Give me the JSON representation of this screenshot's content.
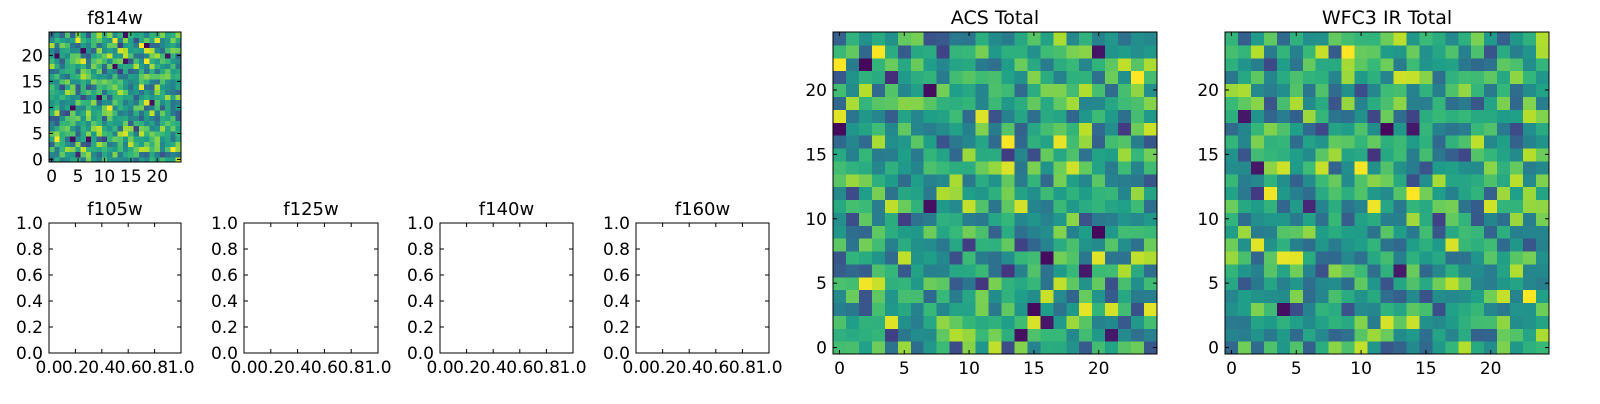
{
  "chart_data": [
    {
      "id": "f814w",
      "type": "heatmap",
      "title": "f814w",
      "xlabel": "",
      "ylabel": "",
      "xlim": [
        -0.5,
        24.5
      ],
      "ylim": [
        -0.5,
        24.5
      ],
      "xticks": [
        0,
        5,
        10,
        15,
        20
      ],
      "xticklabels": [
        "0",
        "5",
        "10",
        "15",
        "20"
      ],
      "yticks": [
        0,
        5,
        10,
        15,
        20
      ],
      "yticklabels": [
        "0",
        "5",
        "10",
        "15",
        "20"
      ],
      "colormap": "viridis",
      "value_range": [
        0,
        1
      ],
      "grid_size": 25,
      "values": "25x25 noise field, values 0-1, rendered with viridis colormap (approximate)",
      "seed": 11
    },
    {
      "id": "f105w",
      "type": "empty",
      "title": "f105w",
      "xlim": [
        0,
        1
      ],
      "ylim": [
        0,
        1
      ],
      "xticklabels": [
        "0.0",
        "0.2",
        "0.4",
        "0.6",
        "0.8",
        "1.0"
      ],
      "yticklabels": [
        "0.0",
        "0.2",
        "0.4",
        "0.6",
        "0.8",
        "1.0"
      ]
    },
    {
      "id": "f125w",
      "type": "empty",
      "title": "f125w",
      "xlim": [
        0,
        1
      ],
      "ylim": [
        0,
        1
      ],
      "xticklabels": [
        "0.0",
        "0.2",
        "0.4",
        "0.6",
        "0.8",
        "1.0"
      ],
      "yticklabels": [
        "0.0",
        "0.2",
        "0.4",
        "0.6",
        "0.8",
        "1.0"
      ]
    },
    {
      "id": "f140w",
      "type": "empty",
      "title": "f140w",
      "xlim": [
        0,
        1
      ],
      "ylim": [
        0,
        1
      ],
      "xticklabels": [
        "0.0",
        "0.2",
        "0.4",
        "0.6",
        "0.8",
        "1.0"
      ],
      "yticklabels": [
        "0.0",
        "0.2",
        "0.4",
        "0.6",
        "0.8",
        "1.0"
      ]
    },
    {
      "id": "f160w",
      "type": "empty",
      "title": "f160w",
      "xlim": [
        0,
        1
      ],
      "ylim": [
        0,
        1
      ],
      "xticklabels": [
        "0.0",
        "0.2",
        "0.4",
        "0.6",
        "0.8",
        "1.0"
      ],
      "yticklabels": [
        "0.0",
        "0.2",
        "0.4",
        "0.6",
        "0.8",
        "1.0"
      ]
    },
    {
      "id": "acs_total",
      "type": "heatmap",
      "title": "ACS Total",
      "xlim": [
        -0.5,
        24.5
      ],
      "ylim": [
        -0.5,
        24.5
      ],
      "xticks": [
        0,
        5,
        10,
        15,
        20
      ],
      "xticklabels": [
        "0",
        "5",
        "10",
        "15",
        "20"
      ],
      "yticks": [
        0,
        5,
        10,
        15,
        20
      ],
      "yticklabels": [
        "0",
        "5",
        "10",
        "15",
        "20"
      ],
      "colormap": "viridis",
      "value_range": [
        0,
        1
      ],
      "grid_size": 25,
      "values": "25x25 noise field, values 0-1, rendered with viridis colormap (approximate)",
      "seed": 29
    },
    {
      "id": "wfc3_ir_total",
      "type": "heatmap",
      "title": "WFC3 IR Total",
      "xlim": [
        -0.5,
        24.5
      ],
      "ylim": [
        -0.5,
        24.5
      ],
      "xticks": [
        0,
        5,
        10,
        15,
        20
      ],
      "xticklabels": [
        "0",
        "5",
        "10",
        "15",
        "20"
      ],
      "yticks": [
        0,
        5,
        10,
        15,
        20
      ],
      "yticklabels": [
        "0",
        "5",
        "10",
        "15",
        "20"
      ],
      "colormap": "viridis",
      "value_range": [
        0,
        1
      ],
      "grid_size": 25,
      "values": "25x25 noise field, values 0-1, rendered with viridis colormap (approximate)",
      "seed": 47
    }
  ]
}
